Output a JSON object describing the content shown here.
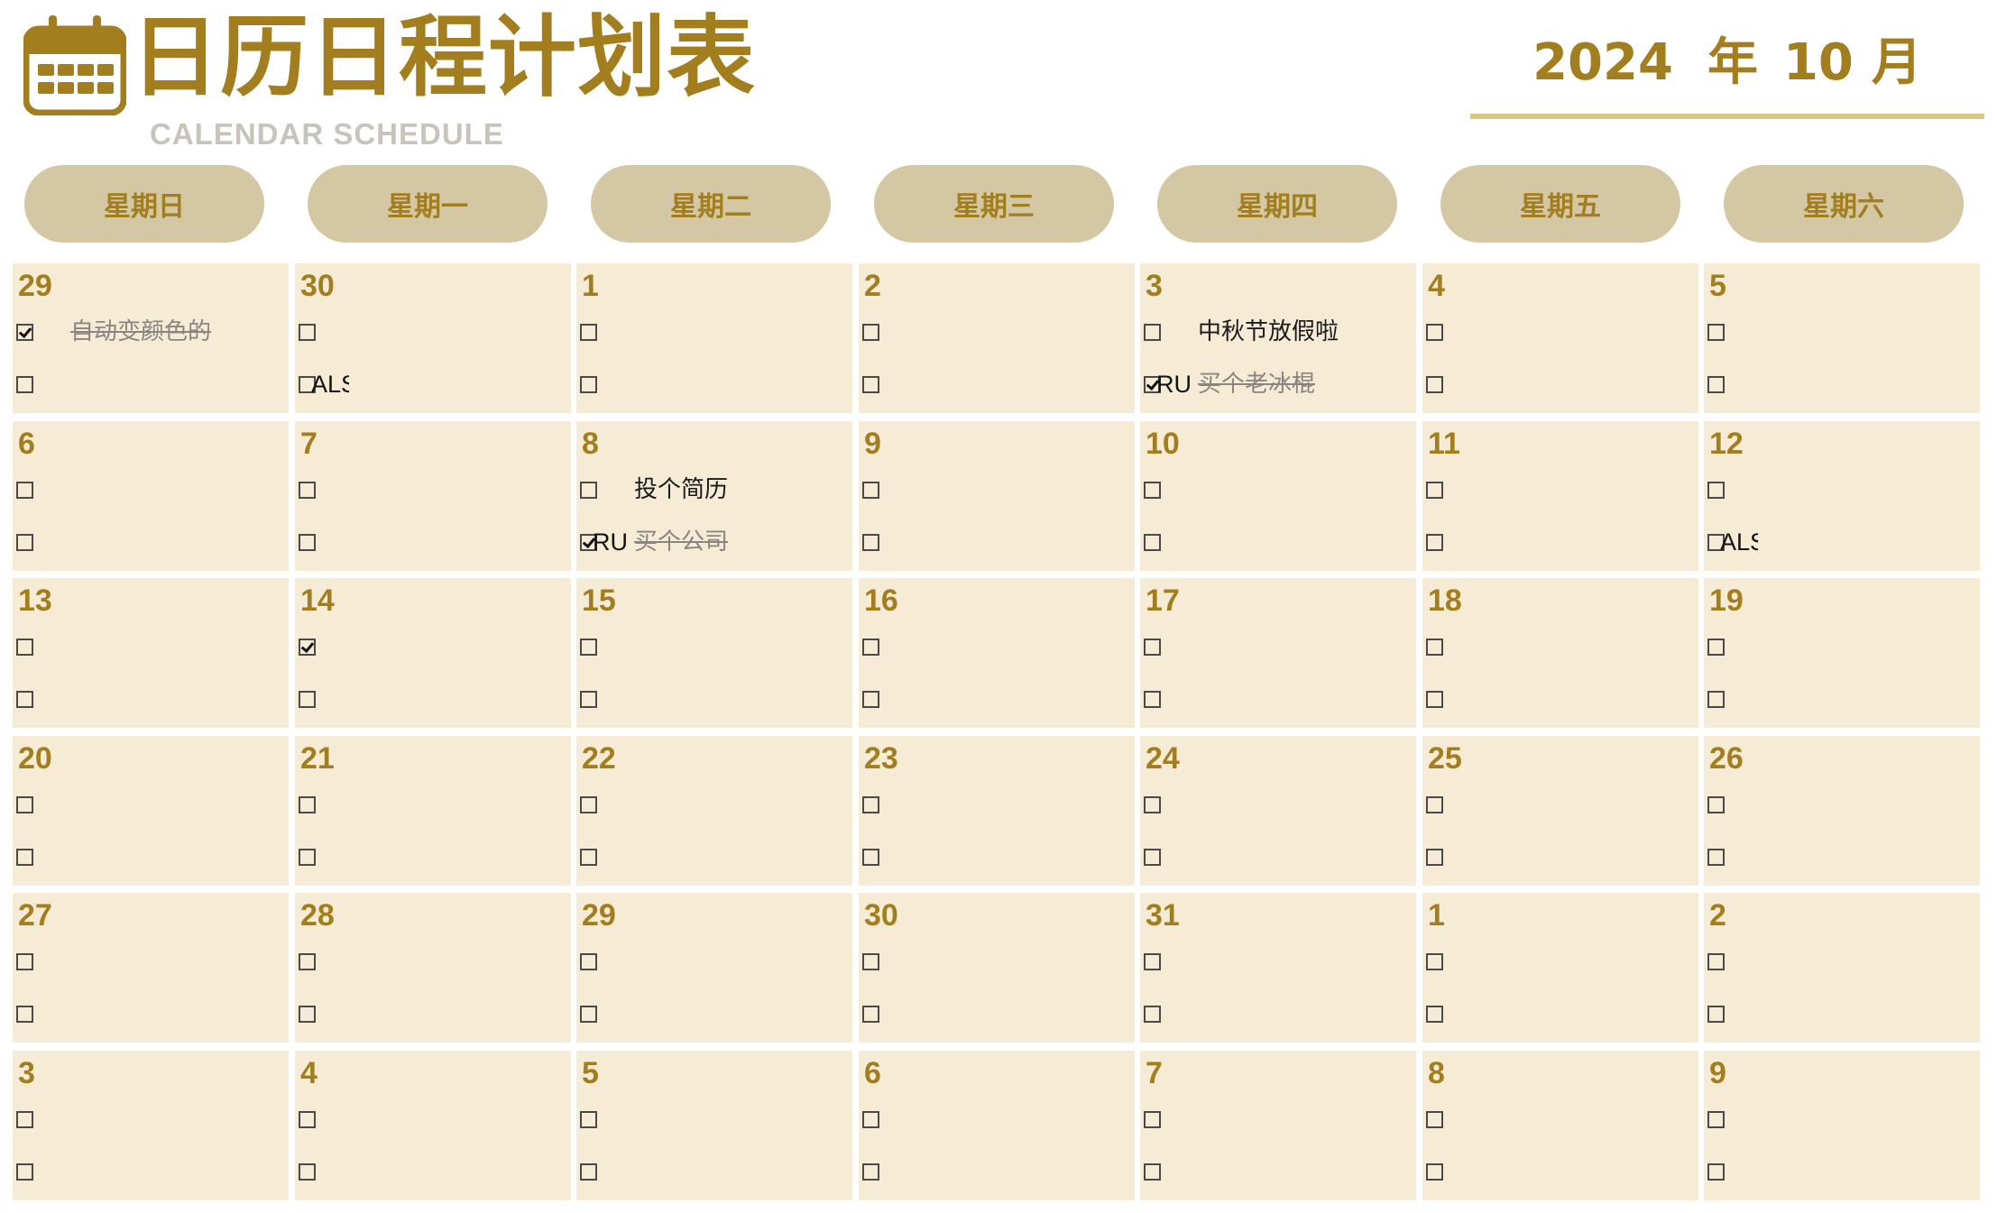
{
  "header": {
    "title": "日历日程计划表",
    "subtitle": "CALENDAR SCHEDULE",
    "year": "2024",
    "year_unit": "年",
    "month": "10",
    "month_unit": "月"
  },
  "colors": {
    "accent": "#a37e1e",
    "pill": "#d4c7a3",
    "cell": "#f6ecd6",
    "underline": "#ddc680"
  },
  "weekdays": [
    "星期日",
    "星期一",
    "星期二",
    "星期三",
    "星期四",
    "星期五",
    "星期六"
  ],
  "weeks": [
    [
      {
        "day": "29",
        "tasks": [
          {
            "checked": true,
            "status": "",
            "text": "自动变颜色的",
            "done": true
          },
          {
            "checked": false,
            "status": "",
            "text": "",
            "done": false
          }
        ]
      },
      {
        "day": "30",
        "tasks": [
          {
            "checked": false,
            "status": "",
            "text": "",
            "done": false
          },
          {
            "checked": false,
            "status": "ALS",
            "text": "",
            "done": false
          }
        ]
      },
      {
        "day": "1",
        "tasks": [
          {
            "checked": false,
            "status": "",
            "text": "",
            "done": false
          },
          {
            "checked": false,
            "status": "",
            "text": "",
            "done": false
          }
        ]
      },
      {
        "day": "2",
        "tasks": [
          {
            "checked": false,
            "status": "",
            "text": "",
            "done": false
          },
          {
            "checked": false,
            "status": "",
            "text": "",
            "done": false
          }
        ]
      },
      {
        "day": "3",
        "tasks": [
          {
            "checked": false,
            "status": "",
            "text": "中秋节放假啦",
            "done": false
          },
          {
            "checked": true,
            "status": "RU",
            "text": "买个老冰棍",
            "done": true
          }
        ]
      },
      {
        "day": "4",
        "tasks": [
          {
            "checked": false,
            "status": "",
            "text": "",
            "done": false
          },
          {
            "checked": false,
            "status": "",
            "text": "",
            "done": false
          }
        ]
      },
      {
        "day": "5",
        "tasks": [
          {
            "checked": false,
            "status": "",
            "text": "",
            "done": false
          },
          {
            "checked": false,
            "status": "",
            "text": "",
            "done": false
          }
        ]
      }
    ],
    [
      {
        "day": "6",
        "tasks": [
          {
            "checked": false,
            "status": "",
            "text": "",
            "done": false
          },
          {
            "checked": false,
            "status": "",
            "text": "",
            "done": false
          }
        ]
      },
      {
        "day": "7",
        "tasks": [
          {
            "checked": false,
            "status": "",
            "text": "",
            "done": false
          },
          {
            "checked": false,
            "status": "",
            "text": "",
            "done": false
          }
        ]
      },
      {
        "day": "8",
        "tasks": [
          {
            "checked": false,
            "status": "",
            "text": "投个简历",
            "done": false
          },
          {
            "checked": true,
            "status": "RU",
            "text": "买个公司",
            "done": true
          }
        ]
      },
      {
        "day": "9",
        "tasks": [
          {
            "checked": false,
            "status": "",
            "text": "",
            "done": false
          },
          {
            "checked": false,
            "status": "",
            "text": "",
            "done": false
          }
        ]
      },
      {
        "day": "10",
        "tasks": [
          {
            "checked": false,
            "status": "",
            "text": "",
            "done": false
          },
          {
            "checked": false,
            "status": "",
            "text": "",
            "done": false
          }
        ]
      },
      {
        "day": "11",
        "tasks": [
          {
            "checked": false,
            "status": "",
            "text": "",
            "done": false
          },
          {
            "checked": false,
            "status": "",
            "text": "",
            "done": false
          }
        ]
      },
      {
        "day": "12",
        "tasks": [
          {
            "checked": false,
            "status": "",
            "text": "",
            "done": false
          },
          {
            "checked": false,
            "status": "ALS",
            "text": "",
            "done": false
          }
        ]
      }
    ],
    [
      {
        "day": "13",
        "tasks": [
          {
            "checked": false,
            "status": "",
            "text": "",
            "done": false
          },
          {
            "checked": false,
            "status": "",
            "text": "",
            "done": false
          }
        ]
      },
      {
        "day": "14",
        "tasks": [
          {
            "checked": true,
            "status": "",
            "text": "",
            "done": false
          },
          {
            "checked": false,
            "status": "",
            "text": "",
            "done": false
          }
        ]
      },
      {
        "day": "15",
        "tasks": [
          {
            "checked": false,
            "status": "",
            "text": "",
            "done": false
          },
          {
            "checked": false,
            "status": "",
            "text": "",
            "done": false
          }
        ]
      },
      {
        "day": "16",
        "tasks": [
          {
            "checked": false,
            "status": "",
            "text": "",
            "done": false
          },
          {
            "checked": false,
            "status": "",
            "text": "",
            "done": false
          }
        ]
      },
      {
        "day": "17",
        "tasks": [
          {
            "checked": false,
            "status": "",
            "text": "",
            "done": false
          },
          {
            "checked": false,
            "status": "",
            "text": "",
            "done": false
          }
        ]
      },
      {
        "day": "18",
        "tasks": [
          {
            "checked": false,
            "status": "",
            "text": "",
            "done": false
          },
          {
            "checked": false,
            "status": "",
            "text": "",
            "done": false
          }
        ]
      },
      {
        "day": "19",
        "tasks": [
          {
            "checked": false,
            "status": "",
            "text": "",
            "done": false
          },
          {
            "checked": false,
            "status": "",
            "text": "",
            "done": false
          }
        ]
      }
    ],
    [
      {
        "day": "20",
        "tasks": [
          {
            "checked": false,
            "status": "",
            "text": "",
            "done": false
          },
          {
            "checked": false,
            "status": "",
            "text": "",
            "done": false
          }
        ]
      },
      {
        "day": "21",
        "tasks": [
          {
            "checked": false,
            "status": "",
            "text": "",
            "done": false
          },
          {
            "checked": false,
            "status": "",
            "text": "",
            "done": false
          }
        ]
      },
      {
        "day": "22",
        "tasks": [
          {
            "checked": false,
            "status": "",
            "text": "",
            "done": false
          },
          {
            "checked": false,
            "status": "",
            "text": "",
            "done": false
          }
        ]
      },
      {
        "day": "23",
        "tasks": [
          {
            "checked": false,
            "status": "",
            "text": "",
            "done": false
          },
          {
            "checked": false,
            "status": "",
            "text": "",
            "done": false
          }
        ]
      },
      {
        "day": "24",
        "tasks": [
          {
            "checked": false,
            "status": "",
            "text": "",
            "done": false
          },
          {
            "checked": false,
            "status": "",
            "text": "",
            "done": false
          }
        ]
      },
      {
        "day": "25",
        "tasks": [
          {
            "checked": false,
            "status": "",
            "text": "",
            "done": false
          },
          {
            "checked": false,
            "status": "",
            "text": "",
            "done": false
          }
        ]
      },
      {
        "day": "26",
        "tasks": [
          {
            "checked": false,
            "status": "",
            "text": "",
            "done": false
          },
          {
            "checked": false,
            "status": "",
            "text": "",
            "done": false
          }
        ]
      }
    ],
    [
      {
        "day": "27",
        "tasks": [
          {
            "checked": false,
            "status": "",
            "text": "",
            "done": false
          },
          {
            "checked": false,
            "status": "",
            "text": "",
            "done": false
          }
        ]
      },
      {
        "day": "28",
        "tasks": [
          {
            "checked": false,
            "status": "",
            "text": "",
            "done": false
          },
          {
            "checked": false,
            "status": "",
            "text": "",
            "done": false
          }
        ]
      },
      {
        "day": "29",
        "tasks": [
          {
            "checked": false,
            "status": "",
            "text": "",
            "done": false
          },
          {
            "checked": false,
            "status": "",
            "text": "",
            "done": false
          }
        ]
      },
      {
        "day": "30",
        "tasks": [
          {
            "checked": false,
            "status": "",
            "text": "",
            "done": false
          },
          {
            "checked": false,
            "status": "",
            "text": "",
            "done": false
          }
        ]
      },
      {
        "day": "31",
        "tasks": [
          {
            "checked": false,
            "status": "",
            "text": "",
            "done": false
          },
          {
            "checked": false,
            "status": "",
            "text": "",
            "done": false
          }
        ]
      },
      {
        "day": "1",
        "tasks": [
          {
            "checked": false,
            "status": "",
            "text": "",
            "done": false
          },
          {
            "checked": false,
            "status": "",
            "text": "",
            "done": false
          }
        ]
      },
      {
        "day": "2",
        "tasks": [
          {
            "checked": false,
            "status": "",
            "text": "",
            "done": false
          },
          {
            "checked": false,
            "status": "",
            "text": "",
            "done": false
          }
        ]
      }
    ],
    [
      {
        "day": "3",
        "tasks": [
          {
            "checked": false,
            "status": "",
            "text": "",
            "done": false
          },
          {
            "checked": false,
            "status": "",
            "text": "",
            "done": false
          }
        ]
      },
      {
        "day": "4",
        "tasks": [
          {
            "checked": false,
            "status": "",
            "text": "",
            "done": false
          },
          {
            "checked": false,
            "status": "",
            "text": "",
            "done": false
          }
        ]
      },
      {
        "day": "5",
        "tasks": [
          {
            "checked": false,
            "status": "",
            "text": "",
            "done": false
          },
          {
            "checked": false,
            "status": "",
            "text": "",
            "done": false
          }
        ]
      },
      {
        "day": "6",
        "tasks": [
          {
            "checked": false,
            "status": "",
            "text": "",
            "done": false
          },
          {
            "checked": false,
            "status": "",
            "text": "",
            "done": false
          }
        ]
      },
      {
        "day": "7",
        "tasks": [
          {
            "checked": false,
            "status": "",
            "text": "",
            "done": false
          },
          {
            "checked": false,
            "status": "",
            "text": "",
            "done": false
          }
        ]
      },
      {
        "day": "8",
        "tasks": [
          {
            "checked": false,
            "status": "",
            "text": "",
            "done": false
          },
          {
            "checked": false,
            "status": "",
            "text": "",
            "done": false
          }
        ]
      },
      {
        "day": "9",
        "tasks": [
          {
            "checked": false,
            "status": "",
            "text": "",
            "done": false
          },
          {
            "checked": false,
            "status": "",
            "text": "",
            "done": false
          }
        ]
      }
    ]
  ]
}
